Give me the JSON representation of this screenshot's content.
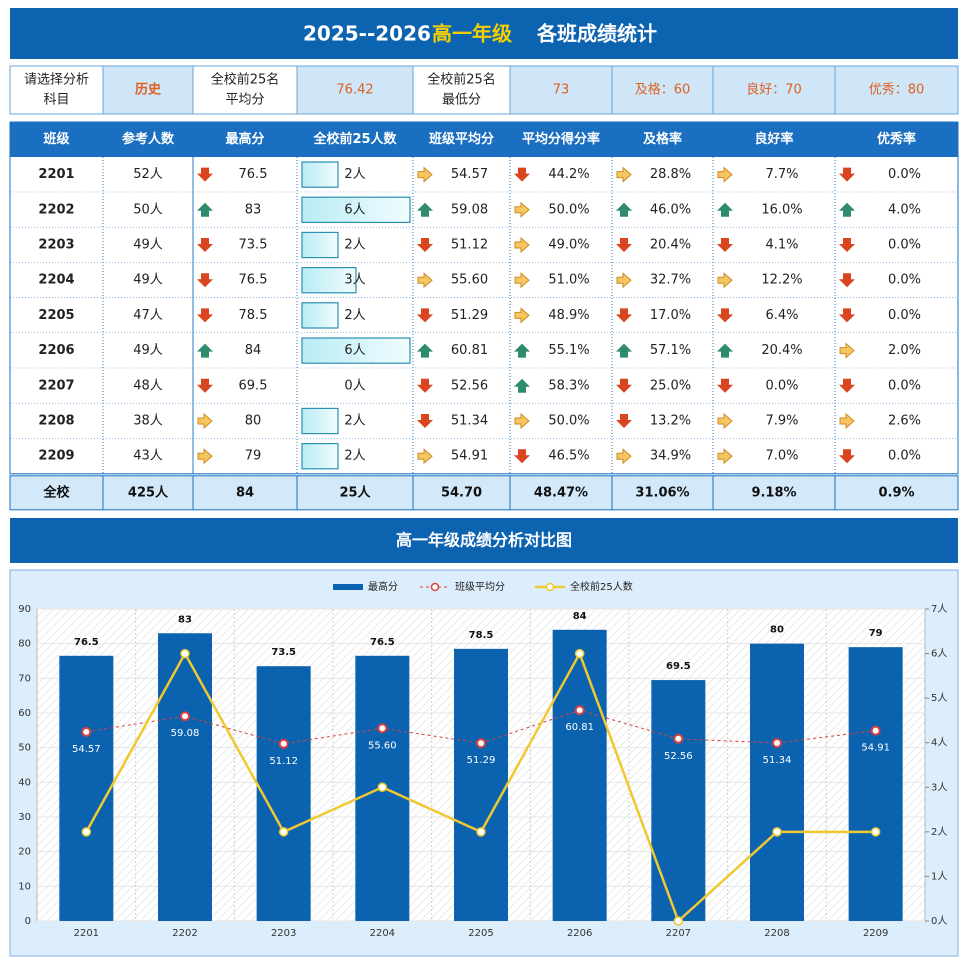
{
  "header": {
    "year": "2025--2026",
    "grade": "高一年级",
    "title": "各班成绩统计"
  },
  "filter": {
    "subject_label": [
      "请选择分析",
      "科目"
    ],
    "subject": "历史",
    "avg_label": [
      "全校前25名",
      "平均分"
    ],
    "avg": "76.42",
    "min_label": [
      "全校前25名",
      "最低分"
    ],
    "min": "73",
    "pass": "及格：60",
    "good": "良好：70",
    "excellent": "优秀：80"
  },
  "table": {
    "columns": [
      "班级",
      "参考人数",
      "最高分",
      "全校前25人数",
      "班级平均分",
      "平均分得分率",
      "及格率",
      "良好率",
      "优秀率"
    ],
    "rows": [
      [
        "2201",
        "52人",
        "76.5",
        "2人",
        "54.57",
        "44.2%",
        "28.8%",
        "7.7%",
        "0.0%"
      ],
      [
        "2202",
        "50人",
        "83",
        "6人",
        "59.08",
        "50.0%",
        "46.0%",
        "16.0%",
        "4.0%"
      ],
      [
        "2203",
        "49人",
        "73.5",
        "2人",
        "51.12",
        "49.0%",
        "20.4%",
        "4.1%",
        "0.0%"
      ],
      [
        "2204",
        "49人",
        "76.5",
        "3人",
        "55.60",
        "51.0%",
        "32.7%",
        "12.2%",
        "0.0%"
      ],
      [
        "2205",
        "47人",
        "78.5",
        "2人",
        "51.29",
        "48.9%",
        "17.0%",
        "6.4%",
        "0.0%"
      ],
      [
        "2206",
        "49人",
        "84",
        "6人",
        "60.81",
        "55.1%",
        "57.1%",
        "20.4%",
        "2.0%"
      ],
      [
        "2207",
        "48人",
        "69.5",
        "0人",
        "52.56",
        "58.3%",
        "25.0%",
        "0.0%",
        "0.0%"
      ],
      [
        "2208",
        "38人",
        "80",
        "2人",
        "51.34",
        "50.0%",
        "13.2%",
        "7.9%",
        "2.6%"
      ],
      [
        "2209",
        "43人",
        "79",
        "2人",
        "54.91",
        "46.5%",
        "34.9%",
        "7.0%",
        "0.0%"
      ]
    ],
    "icons": [
      [
        "down",
        "right",
        "down",
        "right",
        "right",
        "down"
      ],
      [
        "up",
        "up",
        "right",
        "up",
        "up",
        "up"
      ],
      [
        "down",
        "down",
        "right",
        "down",
        "down",
        "down"
      ],
      [
        "down",
        "right",
        "right",
        "right",
        "right",
        "down"
      ],
      [
        "down",
        "down",
        "right",
        "down",
        "down",
        "down"
      ],
      [
        "up",
        "up",
        "up",
        "up",
        "up",
        "right"
      ],
      [
        "down",
        "down",
        "up",
        "down",
        "down",
        "down"
      ],
      [
        "right",
        "down",
        "right",
        "down",
        "right",
        "right"
      ],
      [
        "right",
        "right",
        "down",
        "right",
        "right",
        "down"
      ]
    ],
    "total": [
      "全校",
      "425人",
      "84",
      "25人",
      "54.70",
      "48.47%",
      "31.06%",
      "9.18%",
      "0.9%"
    ]
  },
  "chart_data": {
    "type": "bar",
    "title": "高一年级成绩分析对比图",
    "categories": [
      "2201",
      "2202",
      "2203",
      "2204",
      "2205",
      "2206",
      "2207",
      "2208",
      "2209"
    ],
    "series": [
      {
        "name": "最高分",
        "color": "#0b63b0",
        "type": "bar",
        "values": [
          76.5,
          83,
          73.5,
          76.5,
          78.5,
          84,
          69.5,
          80,
          79
        ]
      },
      {
        "name": "班级平均分",
        "color": "#d94040",
        "type": "line",
        "values": [
          54.57,
          59.08,
          51.12,
          55.6,
          51.29,
          60.81,
          52.56,
          51.34,
          54.91
        ],
        "value_labels": [
          "54.57",
          "59.08",
          "51.12",
          "55.60",
          "51.29",
          "60.81",
          "52.56",
          "51.34",
          "54.91"
        ]
      },
      {
        "name": "全校前25人数",
        "color": "#f0c830",
        "type": "line",
        "axis": "y2",
        "values": [
          2,
          6,
          2,
          3,
          2,
          6,
          0,
          2,
          2
        ]
      }
    ],
    "ylim": [
      0,
      90
    ],
    "yticks": [
      0,
      10,
      20,
      30,
      40,
      50,
      60,
      70,
      80,
      90
    ],
    "y2lim": [
      0,
      7
    ],
    "y2ticks": [
      {
        "value": 0,
        "label": "0人"
      },
      {
        "value": 1,
        "label": "1人"
      },
      {
        "value": 2,
        "label": "2人"
      },
      {
        "value": 3,
        "label": "3人"
      },
      {
        "value": 4,
        "label": "4人"
      },
      {
        "value": 5,
        "label": "5人"
      },
      {
        "value": 6,
        "label": "6人"
      },
      {
        "value": 7,
        "label": "7人"
      }
    ],
    "legend": "top",
    "grid": true
  }
}
